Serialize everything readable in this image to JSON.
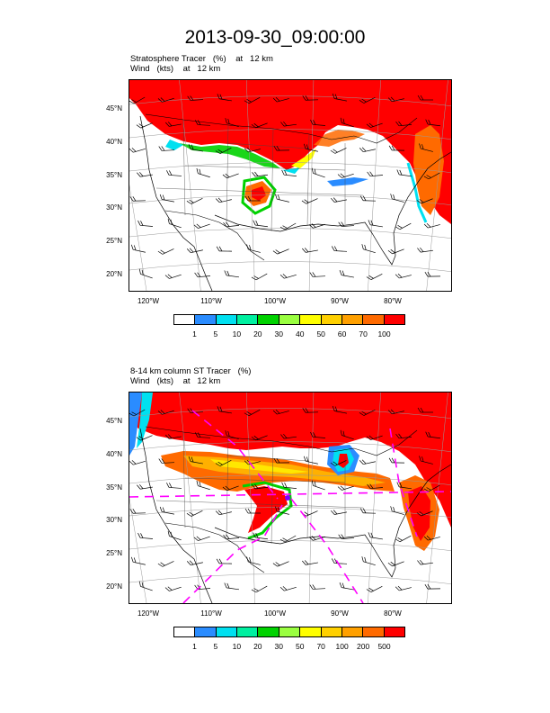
{
  "title": "2013-09-30_09:00:00",
  "colors": {
    "red": "#ff0000",
    "orange": "#ff6a00",
    "amber": "#ffb000",
    "yellow": "#ffff00",
    "lime": "#9aff40",
    "green": "#00d200",
    "teal": "#00f0a0",
    "cyan": "#00e0f0",
    "blue": "#2a8cff",
    "white": "#ffffff",
    "barb": "#000000",
    "path": "#ff00ff"
  },
  "lat_labels": [
    "45°N",
    "40°N",
    "35°N",
    "30°N",
    "25°N",
    "20°N"
  ],
  "lon_labels": [
    "120°W",
    "110°W",
    "100°W",
    "90°W",
    "80°W"
  ],
  "panels": [
    {
      "line1": "Stratosphere Tracer   (%)    at   12 km",
      "line2": "Wind   (kts)    at   12 km",
      "colorbar_colors": [
        "#ffffff",
        "#2a8cff",
        "#00e0f0",
        "#00f0a0",
        "#00d200",
        "#9aff40",
        "#ffff00",
        "#ffd000",
        "#ffa000",
        "#ff6a00",
        "#ff0000"
      ],
      "colorbar_labels": [
        "1",
        "5",
        "10",
        "20",
        "30",
        "40",
        "50",
        "60",
        "70",
        "100"
      ]
    },
    {
      "line1": "8-14 km column ST Tracer   (%)",
      "line2": "Wind   (kts)    at   12 km",
      "colorbar_colors": [
        "#ffffff",
        "#2a8cff",
        "#00e0f0",
        "#00f0a0",
        "#00d200",
        "#9aff40",
        "#ffff00",
        "#ffd000",
        "#ffa000",
        "#ff6a00",
        "#ff0000"
      ],
      "colorbar_labels": [
        "1",
        "5",
        "10",
        "20",
        "30",
        "50",
        "70",
        "100",
        "200",
        "500"
      ]
    }
  ]
}
